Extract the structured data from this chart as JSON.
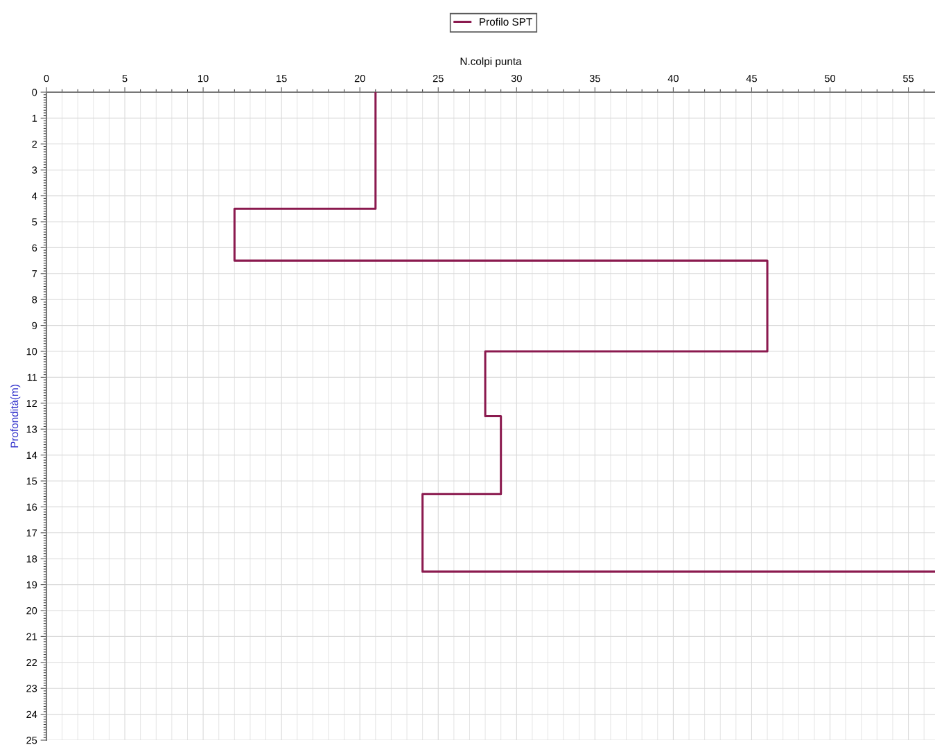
{
  "chart_data": {
    "type": "line",
    "xlabel": "N.colpi punta",
    "ylabel": "Profondità(m)",
    "series": [
      {
        "name": "Profilo SPT",
        "color": "#8b1a4f",
        "x": [
          21,
          21,
          12,
          12,
          46,
          46,
          28,
          28,
          29,
          29,
          24,
          24,
          56.7
        ],
        "values": [
          0,
          4.5,
          4.5,
          6.5,
          6.5,
          10,
          10,
          12.5,
          12.5,
          15.5,
          15.5,
          18.5,
          18.5
        ]
      }
    ],
    "xlim": [
      0,
      56.7
    ],
    "xticks": [
      0,
      5,
      10,
      15,
      20,
      25,
      30,
      35,
      40,
      45,
      50,
      55
    ],
    "ylim": [
      25,
      0
    ],
    "yticks": [
      0,
      1,
      2,
      3,
      4,
      5,
      6,
      7,
      8,
      9,
      10,
      11,
      12,
      13,
      14,
      15,
      16,
      17,
      18,
      19,
      20,
      21,
      22,
      23,
      24,
      25
    ],
    "grid": true,
    "legend": "top",
    "marker": "none",
    "line_style": "solid"
  }
}
